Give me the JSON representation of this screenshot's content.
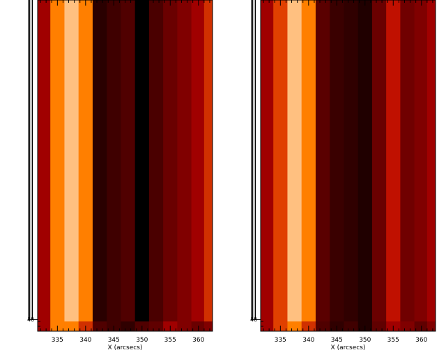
{
  "chart_data": [
    {
      "type": "heatmap",
      "xlabel": "X (arcsecs)",
      "ylabel_fragment": "40",
      "xlim": [
        331.5,
        362.5
      ],
      "xticks": [
        "335",
        "340",
        "345",
        "350",
        "355",
        "360"
      ],
      "colormap": "red-temperature",
      "columns": [
        {
          "x": 332.5,
          "color": "#A00000"
        },
        {
          "x": 335.0,
          "color": "#FF7F00"
        },
        {
          "x": 337.5,
          "color": "#FFC080"
        },
        {
          "x": 340.0,
          "color": "#FF7F00"
        },
        {
          "x": 342.5,
          "color": "#2A0000"
        },
        {
          "x": 345.0,
          "color": "#3F0000"
        },
        {
          "x": 347.5,
          "color": "#500000"
        },
        {
          "x": 350.0,
          "color": "#000000"
        },
        {
          "x": 352.5,
          "color": "#4A0000"
        },
        {
          "x": 355.0,
          "color": "#6A0000"
        },
        {
          "x": 357.5,
          "color": "#800000"
        },
        {
          "x": 360.0,
          "color": "#A00000"
        },
        {
          "x": 362.0,
          "color": "#D03000"
        }
      ],
      "bottom_strip": [
        {
          "x": 332.5,
          "color": "#A00000"
        },
        {
          "x": 335.0,
          "color": "#FF7F00"
        },
        {
          "x": 337.5,
          "color": "#FF7F00"
        },
        {
          "x": 340.0,
          "color": "#D03000"
        },
        {
          "x": 342.5,
          "color": "#500000"
        },
        {
          "x": 345.0,
          "color": "#400000"
        },
        {
          "x": 347.5,
          "color": "#300000"
        },
        {
          "x": 350.0,
          "color": "#500000"
        },
        {
          "x": 352.5,
          "color": "#600000"
        },
        {
          "x": 355.0,
          "color": "#A00000"
        },
        {
          "x": 357.5,
          "color": "#800000"
        },
        {
          "x": 360.0,
          "color": "#6A0000"
        },
        {
          "x": 362.0,
          "color": "#800000"
        }
      ]
    },
    {
      "type": "heatmap",
      "xlabel": "X (arcsecs)",
      "ylabel_fragment": "40",
      "xlim": [
        331.5,
        362.5
      ],
      "xticks": [
        "335",
        "340",
        "345",
        "350",
        "355",
        "360"
      ],
      "colormap": "red-temperature",
      "columns": [
        {
          "x": 332.5,
          "color": "#A00000"
        },
        {
          "x": 335.0,
          "color": "#E04000"
        },
        {
          "x": 337.5,
          "color": "#FFC080"
        },
        {
          "x": 340.0,
          "color": "#FF7F00"
        },
        {
          "x": 342.5,
          "color": "#5A0000"
        },
        {
          "x": 345.0,
          "color": "#3A0000"
        },
        {
          "x": 347.5,
          "color": "#300000"
        },
        {
          "x": 350.0,
          "color": "#200000"
        },
        {
          "x": 352.5,
          "color": "#6A0000"
        },
        {
          "x": 355.0,
          "color": "#C01000"
        },
        {
          "x": 357.5,
          "color": "#700000"
        },
        {
          "x": 360.0,
          "color": "#800000"
        },
        {
          "x": 362.0,
          "color": "#A00000"
        }
      ],
      "bottom_strip": [
        {
          "x": 332.5,
          "color": "#A00000"
        },
        {
          "x": 335.0,
          "color": "#E04000"
        },
        {
          "x": 337.5,
          "color": "#FF7F00"
        },
        {
          "x": 340.0,
          "color": "#D03000"
        },
        {
          "x": 342.5,
          "color": "#500000"
        },
        {
          "x": 345.0,
          "color": "#300000"
        },
        {
          "x": 347.5,
          "color": "#400000"
        },
        {
          "x": 350.0,
          "color": "#200000"
        },
        {
          "x": 352.5,
          "color": "#600000"
        },
        {
          "x": 355.0,
          "color": "#A00000"
        },
        {
          "x": 357.5,
          "color": "#800000"
        },
        {
          "x": 360.0,
          "color": "#600000"
        },
        {
          "x": 362.0,
          "color": "#800000"
        }
      ]
    }
  ]
}
